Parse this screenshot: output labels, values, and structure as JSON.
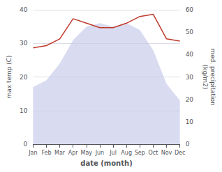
{
  "chart_data": {
    "type": "line",
    "categories": [
      "Jan",
      "Feb",
      "Mar",
      "Apr",
      "May",
      "Jun",
      "Jul",
      "Aug",
      "Sep",
      "Oct",
      "Nov",
      "Dec"
    ],
    "series": [
      {
        "type": "area",
        "color": "#c5cae9",
        "values": [
          17,
          19,
          24,
          31,
          35,
          36,
          35,
          36,
          34,
          28,
          18,
          13
        ]
      },
      {
        "type": "line",
        "color": "#c0392b",
        "axis": "y2",
        "values": [
          43,
          44,
          47,
          56,
          54,
          52,
          52,
          54,
          57,
          58,
          47,
          46
        ]
      }
    ],
    "xlabel": "date (month)",
    "ylabel": "max temp (C)",
    "y2label": "med. precipitation\n(kg/m2)",
    "ylim": [
      0,
      40
    ],
    "yticks": [
      0,
      10,
      20,
      30,
      40
    ],
    "y2lim": [
      0,
      60
    ],
    "y2ticks": [
      0,
      10,
      20,
      30,
      40,
      50,
      60
    ],
    "grid": true
  }
}
